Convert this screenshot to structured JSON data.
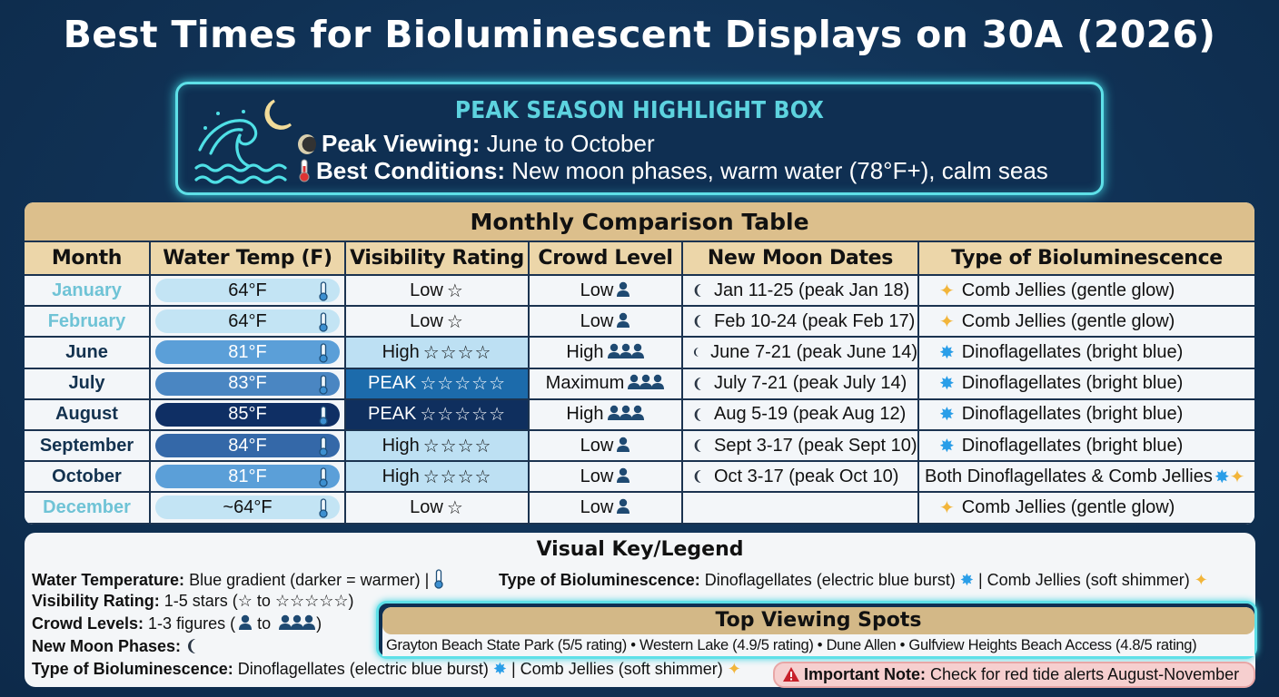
{
  "title": "Best Times for Bioluminescent Displays on 30A (2026)",
  "highlight": {
    "title": "PEAK SEASON HIGHLIGHT BOX",
    "peak_label": "Peak Viewing:",
    "peak_value": "June to October",
    "conditions_label": "Best Conditions:",
    "conditions_value": "New moon phases, warm water (78°F+), calm seas",
    "icons": [
      "wave-icon",
      "crescent-moon-icon",
      "moon-phase-icon",
      "thermometer-icon"
    ]
  },
  "table": {
    "title": "Monthly Comparison Table",
    "headers": [
      "Month",
      "Water Temp (F)",
      "Visibility Rating",
      "Crowd Level",
      "New Moon Dates",
      "Type of Bioluminescence"
    ],
    "rows": [
      {
        "month": "January",
        "temp": "64°F",
        "visibility": "Low",
        "stars": "☆",
        "crowd": "Low",
        "crowd_figures": 1,
        "moon": "Jan 11-25 (peak Jan 18)",
        "type": "Comb Jellies (gentle glow)",
        "type_icon": "sparkle"
      },
      {
        "month": "February",
        "temp": "64°F",
        "visibility": "Low",
        "stars": "☆",
        "crowd": "Low",
        "crowd_figures": 1,
        "moon": "Feb 10-24 (peak Feb 17)",
        "type": "Comb Jellies (gentle glow)",
        "type_icon": "sparkle"
      },
      {
        "month": "June",
        "temp": "81°F",
        "visibility": "High",
        "stars": "☆☆☆☆",
        "crowd": "High",
        "crowd_figures": 3,
        "moon": "June 7-21 (peak June 14)",
        "type": "Dinoflagellates (bright blue)",
        "type_icon": "burst"
      },
      {
        "month": "July",
        "temp": "83°F",
        "visibility": "PEAK",
        "stars": "☆☆☆☆☆",
        "crowd": "Maximum",
        "crowd_figures": 3,
        "moon": "July 7-21 (peak July 14)",
        "type": "Dinoflagellates (bright blue)",
        "type_icon": "burst"
      },
      {
        "month": "August",
        "temp": "85°F",
        "visibility": "PEAK",
        "stars": "☆☆☆☆☆",
        "crowd": "High",
        "crowd_figures": 3,
        "moon": "Aug 5-19 (peak Aug 12)",
        "type": "Dinoflagellates (bright blue)",
        "type_icon": "burst"
      },
      {
        "month": "September",
        "temp": "84°F",
        "visibility": "High",
        "stars": "☆☆☆☆",
        "crowd": "Low",
        "crowd_figures": 1,
        "moon": "Sept 3-17 (peak Sept 10)",
        "type": "Dinoflagellates (bright blue)",
        "type_icon": "burst"
      },
      {
        "month": "October",
        "temp": "81°F",
        "visibility": "High",
        "stars": "☆☆☆☆",
        "crowd": "Low",
        "crowd_figures": 1,
        "moon": "Oct 3-17 (peak Oct 10)",
        "type": "Both Dinoflagellates & Comb Jellies",
        "type_icon": "both"
      },
      {
        "month": "December",
        "temp": "~64°F",
        "visibility": "Low",
        "stars": "☆",
        "crowd": "Low",
        "crowd_figures": 1,
        "moon": "",
        "type": "Comb Jellies (gentle glow)",
        "type_icon": "sparkle"
      }
    ]
  },
  "legend": {
    "title": "Visual Key/Legend",
    "water_label": "Water Temperature:",
    "water_value": "Blue gradient (darker = warmer) |",
    "visibility_label": "Visibility Rating:",
    "visibility_value": "1-5 stars (☆ to ☆☆☆☆☆)",
    "crowd_label": "Crowd Levels:",
    "crowd_value_a": "1-3 figures (",
    "crowd_value_b": "to",
    "crowd_value_c": ")",
    "moon_label": "New Moon Phases:",
    "type_label": "Type of Bioluminescence:",
    "type_value_a": "Dinoflagellates (electric blue burst)",
    "type_value_b": "| Comb Jellies (soft shimmer)"
  },
  "spots": {
    "title": "Top Viewing Spots",
    "text": "Grayton Beach State Park (5/5 rating) • Western Lake (4.9/5 rating) • Dune Allen • Gulfview Heights Beach Access (4.8/5 rating)"
  },
  "note": {
    "label": "Important Note:",
    "text": "Check for red tide alerts August-November"
  },
  "colors": {
    "background": "#113456",
    "accent_cyan": "#5ee0e8",
    "tan_header": "#dcbf8c",
    "temp_light": "#bfe3f3",
    "temp_mid": "#5aa0d6",
    "temp_dark": "#0e2f62",
    "note_bg": "#f6cfcf"
  }
}
